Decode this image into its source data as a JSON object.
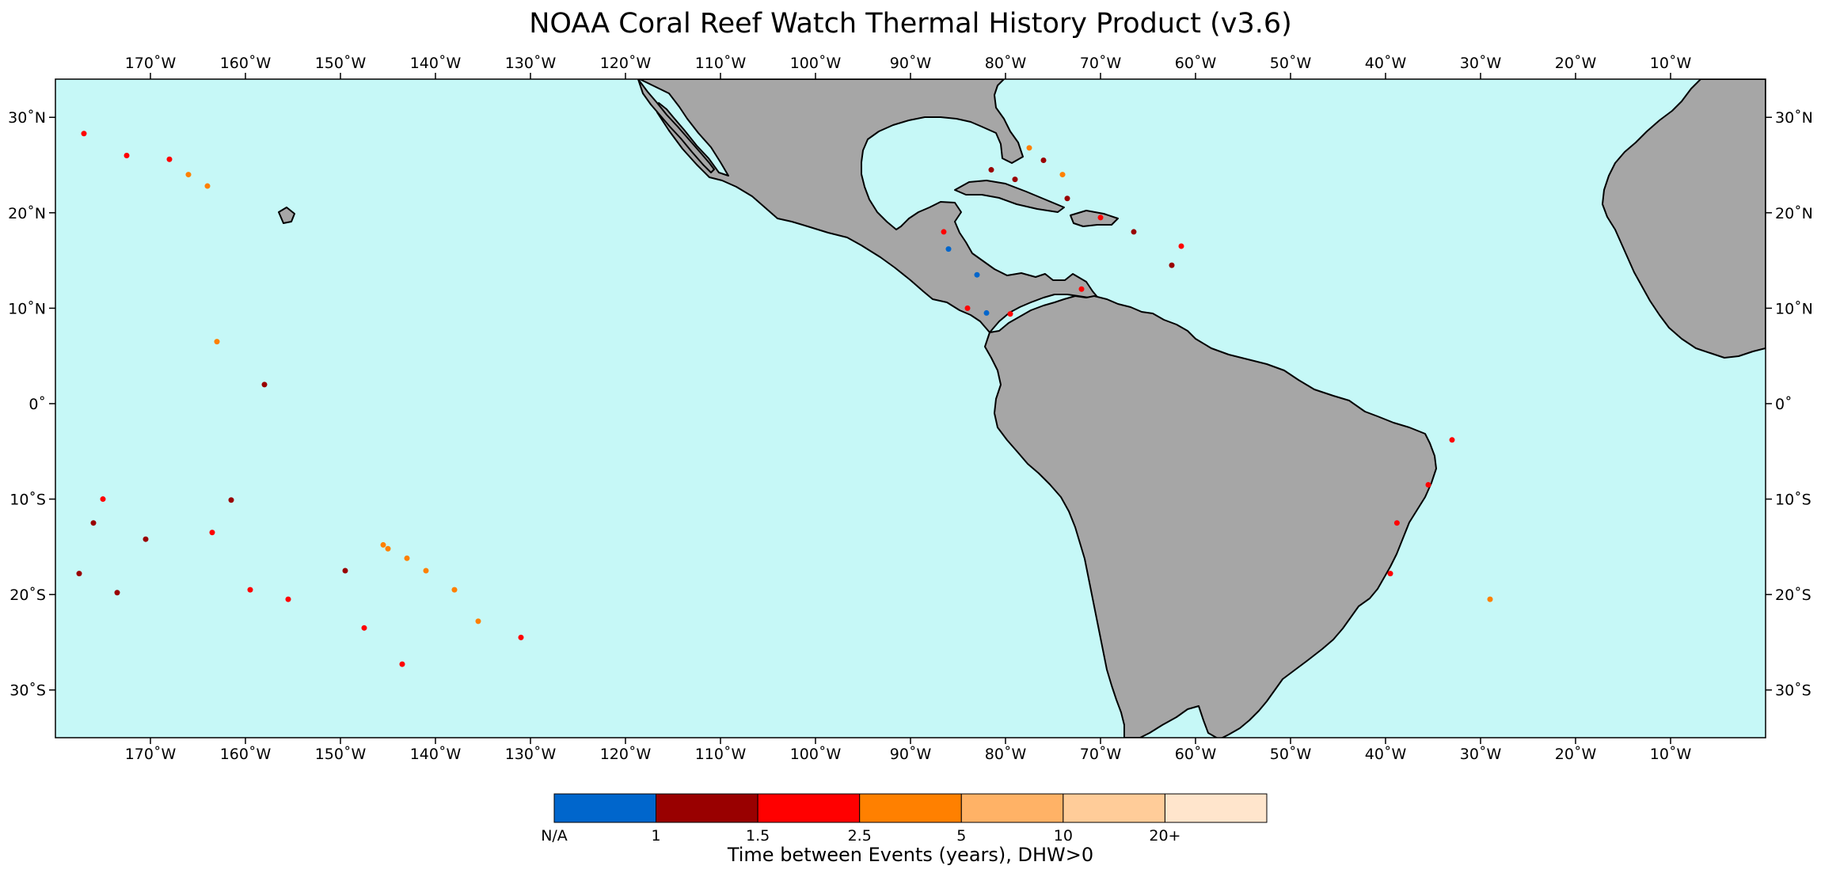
{
  "title": "NOAA Coral Reef Watch Thermal History Product (v3.6)",
  "colors": {
    "ocean": "#c6f8f7",
    "land": "#a6a6a6",
    "coast": "#000000"
  },
  "map": {
    "lon_range": [
      -180,
      0
    ],
    "lat_range": [
      -35,
      34
    ],
    "lon_ticks": [
      {
        "value": -170,
        "label": "170˚W"
      },
      {
        "value": -160,
        "label": "160˚W"
      },
      {
        "value": -150,
        "label": "150˚W"
      },
      {
        "value": -140,
        "label": "140˚W"
      },
      {
        "value": -130,
        "label": "130˚W"
      },
      {
        "value": -120,
        "label": "120˚W"
      },
      {
        "value": -110,
        "label": "110˚W"
      },
      {
        "value": -100,
        "label": "100˚W"
      },
      {
        "value": -90,
        "label": "90˚W"
      },
      {
        "value": -80,
        "label": "80˚W"
      },
      {
        "value": -70,
        "label": "70˚W"
      },
      {
        "value": -60,
        "label": "60˚W"
      },
      {
        "value": -50,
        "label": "50˚W"
      },
      {
        "value": -40,
        "label": "40˚W"
      },
      {
        "value": -30,
        "label": "30˚W"
      },
      {
        "value": -20,
        "label": "20˚W"
      },
      {
        "value": -10,
        "label": "10˚W"
      }
    ],
    "lat_ticks": [
      {
        "value": 30,
        "label": "30˚N"
      },
      {
        "value": 20,
        "label": "20˚N"
      },
      {
        "value": 10,
        "label": "10˚N"
      },
      {
        "value": 0,
        "label": "0˚"
      },
      {
        "value": -10,
        "label": "10˚S"
      },
      {
        "value": -20,
        "label": "20˚S"
      },
      {
        "value": -30,
        "label": "30˚S"
      }
    ]
  },
  "legend": {
    "bins": [
      {
        "color": "#0066cc"
      },
      {
        "color": "#990000"
      },
      {
        "color": "#ff0000"
      },
      {
        "color": "#ff8000"
      },
      {
        "color": "#ffb266"
      },
      {
        "color": "#ffcc99"
      },
      {
        "color": "#ffe5cc"
      }
    ],
    "tick_labels": [
      "N/A",
      "1",
      "1.5",
      "2.5",
      "5",
      "10",
      "20+"
    ],
    "label": "Time between Events (years), DHW>0"
  },
  "reef_events": [
    {
      "lon": -177.5,
      "lat": -17.8,
      "category": "1"
    },
    {
      "lon": -176.0,
      "lat": -12.5,
      "category": "1"
    },
    {
      "lon": -173.5,
      "lat": -19.8,
      "category": "1"
    },
    {
      "lon": -170.5,
      "lat": -14.2,
      "category": "1"
    },
    {
      "lon": -161.5,
      "lat": -10.1,
      "category": "1"
    },
    {
      "lon": -158.0,
      "lat": 2.0,
      "category": "1"
    },
    {
      "lon": -149.5,
      "lat": -17.5,
      "category": "1"
    },
    {
      "lon": -177.0,
      "lat": 28.3,
      "category": "1.5"
    },
    {
      "lon": -172.5,
      "lat": 26.0,
      "category": "1.5"
    },
    {
      "lon": -168.0,
      "lat": 25.6,
      "category": "1.5"
    },
    {
      "lon": -175.0,
      "lat": -10.0,
      "category": "1.5"
    },
    {
      "lon": -163.5,
      "lat": -13.5,
      "category": "1.5"
    },
    {
      "lon": -159.5,
      "lat": -19.5,
      "category": "1.5"
    },
    {
      "lon": -155.5,
      "lat": -20.5,
      "category": "1.5"
    },
    {
      "lon": -147.5,
      "lat": -23.5,
      "category": "1.5"
    },
    {
      "lon": -143.5,
      "lat": -27.3,
      "category": "1.5"
    },
    {
      "lon": -131.0,
      "lat": -24.5,
      "category": "1.5"
    },
    {
      "lon": -163.0,
      "lat": 6.5,
      "category": "2.5"
    },
    {
      "lon": -164.0,
      "lat": 22.8,
      "category": "2.5"
    },
    {
      "lon": -166.0,
      "lat": 24.0,
      "category": "2.5"
    },
    {
      "lon": -145.0,
      "lat": -15.2,
      "category": "2.5"
    },
    {
      "lon": -143.0,
      "lat": -16.2,
      "category": "2.5"
    },
    {
      "lon": -141.0,
      "lat": -17.5,
      "category": "2.5"
    },
    {
      "lon": -138.0,
      "lat": -19.5,
      "category": "2.5"
    },
    {
      "lon": -135.5,
      "lat": -22.8,
      "category": "2.5"
    },
    {
      "lon": -145.5,
      "lat": -14.8,
      "category": "2.5"
    },
    {
      "lon": -81.5,
      "lat": 24.5,
      "category": "1"
    },
    {
      "lon": -79.0,
      "lat": 23.5,
      "category": "1"
    },
    {
      "lon": -76.0,
      "lat": 25.5,
      "category": "1"
    },
    {
      "lon": -73.5,
      "lat": 21.5,
      "category": "1"
    },
    {
      "lon": -66.5,
      "lat": 18.0,
      "category": "1"
    },
    {
      "lon": -62.5,
      "lat": 14.5,
      "category": "1"
    },
    {
      "lon": -86.5,
      "lat": 18.0,
      "category": "1.5"
    },
    {
      "lon": -84.0,
      "lat": 10.0,
      "category": "1.5"
    },
    {
      "lon": -79.5,
      "lat": 9.4,
      "category": "1.5"
    },
    {
      "lon": -72.0,
      "lat": 12.0,
      "category": "1.5"
    },
    {
      "lon": -70.0,
      "lat": 19.5,
      "category": "1.5"
    },
    {
      "lon": -61.5,
      "lat": 16.5,
      "category": "1.5"
    },
    {
      "lon": -38.8,
      "lat": -12.5,
      "category": "1.5"
    },
    {
      "lon": -39.5,
      "lat": -17.8,
      "category": "1.5"
    },
    {
      "lon": -35.5,
      "lat": -8.5,
      "category": "1.5"
    },
    {
      "lon": -83.0,
      "lat": 13.5,
      "category": "N/A"
    },
    {
      "lon": -82.0,
      "lat": 9.5,
      "category": "N/A"
    },
    {
      "lon": -86.0,
      "lat": 16.2,
      "category": "N/A"
    },
    {
      "lon": -77.5,
      "lat": 26.8,
      "category": "2.5"
    },
    {
      "lon": -74.0,
      "lat": 24.0,
      "category": "2.5"
    },
    {
      "lon": -29.0,
      "lat": -20.5,
      "category": "2.5"
    },
    {
      "lon": -33.0,
      "lat": -3.8,
      "category": "1.5"
    }
  ]
}
